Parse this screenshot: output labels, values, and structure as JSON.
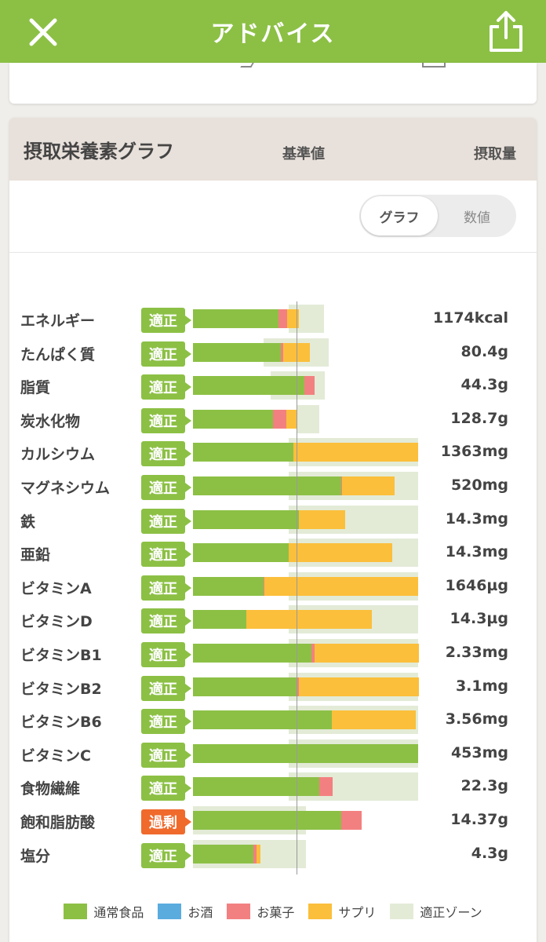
{
  "header": {
    "title": "アドバイス"
  },
  "card": {
    "title": "摂取栄養素グラフ",
    "toggle": {
      "active": "グラフ",
      "inactive": "数値"
    },
    "col_reference": "基準値",
    "col_intake": "摂取量"
  },
  "colors": {
    "food": "#8cc045",
    "alcohol": "#5aacdf",
    "snack": "#f38080",
    "supplement": "#fbbf3b",
    "zone": "#e3ebd7",
    "badge_ok": "#8cc045",
    "badge_over": "#f06a2c"
  },
  "legend": [
    "通常食品",
    "お酒",
    "お菓子",
    "サプリ",
    "適正ゾーン"
  ],
  "chart_data": {
    "type": "bar",
    "categories": [
      "エネルギー",
      "たんぱく質",
      "脂質",
      "炭水化物",
      "カルシウム",
      "マグネシウム",
      "鉄",
      "亜鉛",
      "ビタミンA",
      "ビタミンD",
      "ビタミンB1",
      "ビタミンB2",
      "ビタミンB6",
      "ビタミンC",
      "食物繊維",
      "飽和脂肪酸",
      "塩分"
    ],
    "status": [
      "適正",
      "適正",
      "適正",
      "適正",
      "適正",
      "適正",
      "適正",
      "適正",
      "適正",
      "適正",
      "適正",
      "適正",
      "適正",
      "適正",
      "適正",
      "過剰",
      "適正"
    ],
    "intake_labels": [
      "1174kcal",
      "80.4g",
      "44.3g",
      "128.7g",
      "1363mg",
      "520mg",
      "14.3mg",
      "14.3mg",
      "1646µg",
      "14.3µg",
      "2.33mg",
      "3.1mg",
      "3.56mg",
      "453mg",
      "22.3g",
      "14.37g",
      "4.3g"
    ],
    "unit_note": "values are percent of reference (基準値 = 100)",
    "series": [
      {
        "name": "通常食品",
        "values": [
          75,
          77,
          98,
          70,
          88,
          130,
          93,
          84,
          62,
          47,
          104,
          91,
          122,
          198,
          111,
          130,
          53
        ]
      },
      {
        "name": "お酒",
        "values": [
          0,
          0,
          0,
          0,
          0,
          0,
          0,
          0,
          0,
          0,
          0,
          0,
          0,
          0,
          0,
          0,
          0
        ]
      },
      {
        "name": "お菓子",
        "values": [
          8,
          2,
          9,
          12,
          0,
          1,
          0,
          0,
          1,
          0,
          3,
          2,
          0,
          0,
          12,
          18,
          3
        ]
      },
      {
        "name": "サプリ",
        "values": [
          10,
          24,
          0,
          9,
          110,
          46,
          41,
          91,
          135,
          110,
          92,
          106,
          74,
          0,
          0,
          0,
          3
        ]
      }
    ],
    "zone": [
      [
        84,
        115
      ],
      [
        62,
        119
      ],
      [
        68,
        116
      ],
      [
        91,
        111
      ],
      [
        84,
        198
      ],
      [
        84,
        198
      ],
      [
        84,
        198
      ],
      [
        84,
        198
      ],
      [
        84,
        198
      ],
      [
        84,
        198
      ],
      [
        84,
        198
      ],
      [
        84,
        198
      ],
      [
        84,
        198
      ],
      [
        84,
        198
      ],
      [
        84,
        198
      ],
      [
        0,
        99
      ],
      [
        0,
        99
      ]
    ]
  }
}
